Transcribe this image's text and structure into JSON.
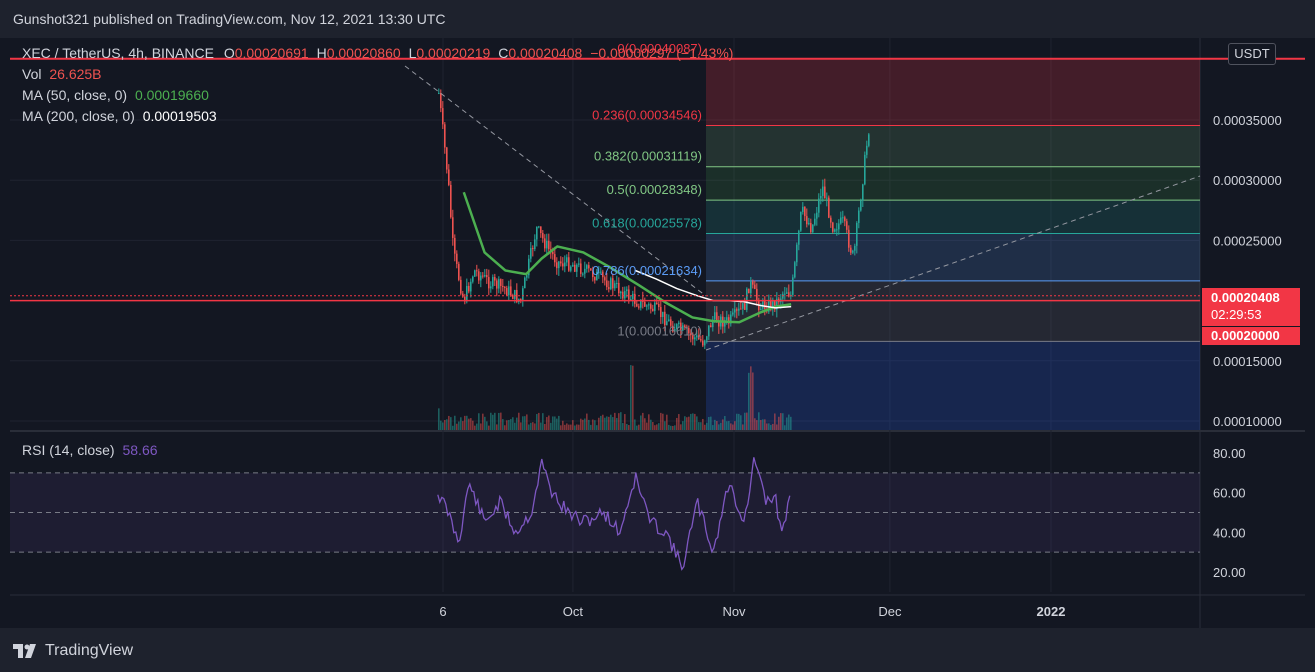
{
  "header": {
    "attribution": "Gunshot321 published on TradingView.com, Nov 12, 2021 13:30 UTC"
  },
  "footer": {
    "brand": "TradingView"
  },
  "legend": {
    "symbol": "XEC / TetherUS, 4h, BINANCE",
    "ohlc": {
      "o_label": "O",
      "o_value": "0.00020691",
      "h_label": "H",
      "h_value": "0.00020860",
      "l_label": "L",
      "l_value": "0.00020219",
      "c_label": "C",
      "c_value": "0.00020408",
      "change": "−0.00000297 (−1.43%)"
    },
    "vol_label": "Vol",
    "vol_value": "26.625B",
    "ma50_label": "MA (50, close, 0)",
    "ma50_value": "0.00019660",
    "ma200_label": "MA (200, close, 0)",
    "ma200_value": "0.00019503",
    "rsi_label": "RSI (14, close)",
    "rsi_value": "58.66"
  },
  "price_axis": {
    "currency_button": "USDT",
    "current_price": "0.00020408",
    "countdown": "02:29:53",
    "horizontal_line_price": "0.00020000"
  },
  "colors": {
    "background": "#131722",
    "up": "#26a69a",
    "down": "#ef5350",
    "ma50": "#4caf50",
    "ma200": "#ffffff",
    "rsi": "#7e57c2",
    "price_tag": "#f23645",
    "fib_red": "#f23645",
    "fib_green": "#81c784",
    "fib_teal": "#26a69a",
    "fib_blue": "#5b9cf6",
    "fib_grey": "#787b86"
  },
  "chart_data": [
    {
      "type": "candlestick",
      "title": "XEC / TetherUS, 4h, BINANCE",
      "x_ticks": [
        "6",
        "Oct",
        "Nov",
        "Dec",
        "2022"
      ],
      "y_ticks": [
        "0.00010000",
        "0.00015000",
        "0.00020000",
        "0.00025000",
        "0.00030000",
        "0.00035000"
      ],
      "ylim": [
        9e-05,
        0.000405
      ],
      "grid": true,
      "current_price": 0.00020408,
      "horizontal_line": 0.0002,
      "fib_retracement": [
        {
          "ratio": "0",
          "price": "0.00040087",
          "label": "0(0.00040087)"
        },
        {
          "ratio": "0.236",
          "price": "0.00034546",
          "label": "0.236(0.00034546)"
        },
        {
          "ratio": "0.382",
          "price": "0.00031119",
          "label": "0.382(0.00031119)"
        },
        {
          "ratio": "0.5",
          "price": "0.00028348",
          "label": "0.5(0.00028348)"
        },
        {
          "ratio": "0.618",
          "price": "0.00025578",
          "label": "0.618(0.00025578)"
        },
        {
          "ratio": "0.786",
          "price": "0.00021634",
          "label": "0.786(0.00021634)"
        },
        {
          "ratio": "1",
          "price": "0.00016610",
          "label": "1(0.00016610)"
        }
      ],
      "price_path": [
        [
          "Sep 5",
          0.00026
        ],
        [
          "Sep 5",
          0.00038
        ],
        [
          "Sep 6",
          0.00034
        ],
        [
          "Sep 7",
          0.0003
        ],
        [
          "Sep 8",
          0.00024
        ],
        [
          "Sep 10",
          0.0002
        ],
        [
          "Sep 12",
          0.000225
        ],
        [
          "Sep 15",
          0.000215
        ],
        [
          "Sep 18",
          0.00021
        ],
        [
          "Sep 21",
          0.0002
        ],
        [
          "Sep 24",
          0.00026
        ],
        [
          "Sep 26",
          0.000245
        ],
        [
          "Sep 28",
          0.000232
        ],
        [
          "Oct 1",
          0.00023
        ],
        [
          "Oct 5",
          0.000222
        ],
        [
          "Oct 9",
          0.000212
        ],
        [
          "Oct 13",
          0.0002
        ],
        [
          "Oct 17",
          0.000192
        ],
        [
          "Oct 20",
          0.00018
        ],
        [
          "Oct 24",
          0.00017
        ],
        [
          "Oct 26",
          0.000166
        ],
        [
          "Oct 28",
          0.000185
        ],
        [
          "Oct 31",
          0.000182
        ],
        [
          "Nov 3",
          0.000195
        ],
        [
          "Nov 4",
          0.000215
        ],
        [
          "Nov 6",
          0.000195
        ],
        [
          "Nov 9",
          0.000198
        ],
        [
          "Nov 11",
          0.00021
        ],
        [
          "Nov 12",
          0.000204
        ],
        [
          "Nov 14",
          0.000275
        ],
        [
          "Nov 16",
          0.00026
        ],
        [
          "Nov 18",
          0.000295
        ],
        [
          "Nov 20",
          0.000262
        ],
        [
          "Nov 22",
          0.000265
        ],
        [
          "Nov 24",
          0.000235
        ],
        [
          "Nov 26",
          0.00031
        ],
        [
          "Nov 27",
          0.000345
        ]
      ],
      "ma50_path": [
        [
          "Sep 10",
          0.00029
        ],
        [
          "Sep 14",
          0.00024
        ],
        [
          "Sep 18",
          0.000225
        ],
        [
          "Sep 22",
          0.000222
        ],
        [
          "Sep 25",
          0.000235
        ],
        [
          "Sep 28",
          0.000245
        ],
        [
          "Oct 3",
          0.00024
        ],
        [
          "Oct 8",
          0.000228
        ],
        [
          "Oct 14",
          0.000212
        ],
        [
          "Oct 19",
          0.000198
        ],
        [
          "Oct 24",
          0.000186
        ],
        [
          "Oct 28",
          0.000183
        ],
        [
          "Nov 2",
          0.000182
        ],
        [
          "Nov 6",
          0.00019
        ],
        [
          "Nov 9",
          0.000195
        ],
        [
          "Nov 12",
          0.000197
        ]
      ],
      "ma200_path": [
        [
          "Oct 13",
          0.000225
        ],
        [
          "Oct 17",
          0.000218
        ],
        [
          "Oct 21",
          0.00021
        ],
        [
          "Oct 25",
          0.000204
        ],
        [
          "Oct 28",
          0.0002
        ],
        [
          "Oct 31",
          0.0002
        ],
        [
          "Nov 3",
          0.000199
        ],
        [
          "Nov 6",
          0.000196
        ],
        [
          "Nov 9",
          0.000194
        ],
        [
          "Nov 12",
          0.000195
        ]
      ]
    },
    {
      "type": "line",
      "title": "RSI (14, close)",
      "y_ticks": [
        "20.00",
        "40.00",
        "60.00",
        "80.00"
      ],
      "ylim": [
        15,
        85
      ],
      "bands": [
        30,
        50,
        70
      ],
      "series": [
        {
          "name": "RSI (14, close)",
          "current": 58.66,
          "values": [
            [
              "Sep 5",
              60
            ],
            [
              "Sep 7",
              50
            ],
            [
              "Sep 9",
              35
            ],
            [
              "Sep 11",
              65
            ],
            [
              "Sep 14",
              45
            ],
            [
              "Sep 17",
              55
            ],
            [
              "Sep 20",
              40
            ],
            [
              "Sep 23",
              50
            ],
            [
              "Sep 25",
              75
            ],
            [
              "Sep 27",
              60
            ],
            [
              "Sep 30",
              50
            ],
            [
              "Oct 3",
              45
            ],
            [
              "Oct 7",
              50
            ],
            [
              "Oct 10",
              40
            ],
            [
              "Oct 13",
              68
            ],
            [
              "Oct 16",
              45
            ],
            [
              "Oct 19",
              40
            ],
            [
              "Oct 22",
              22
            ],
            [
              "Oct 25",
              55
            ],
            [
              "Oct 28",
              30
            ],
            [
              "Oct 31",
              65
            ],
            [
              "Nov 3",
              45
            ],
            [
              "Nov 5",
              78
            ],
            [
              "Nov 7",
              55
            ],
            [
              "Nov 9",
              58
            ],
            [
              "Nov 10",
              40
            ],
            [
              "Nov 12",
              58.66
            ]
          ]
        }
      ]
    }
  ]
}
